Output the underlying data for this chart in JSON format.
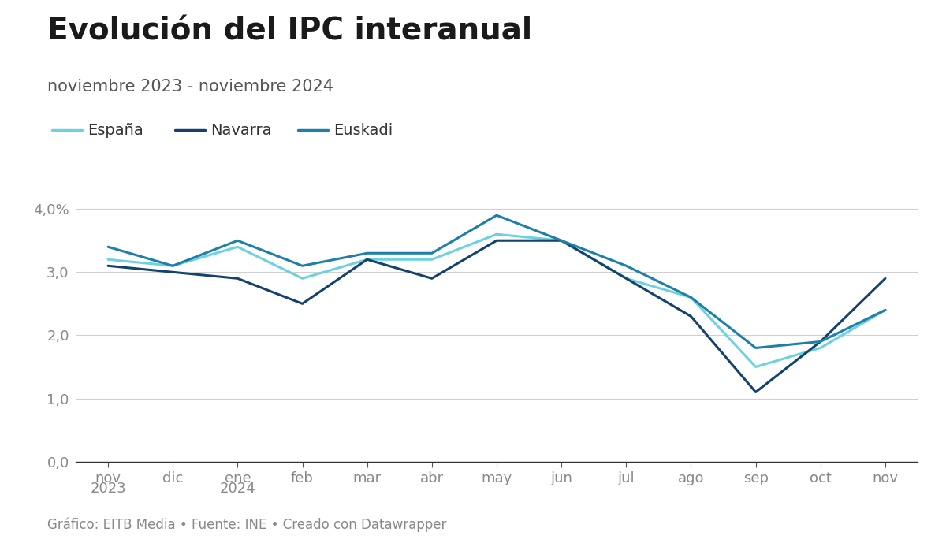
{
  "title": "Evolución del IPC interanual",
  "subtitle": "noviembre 2023 - noviembre 2024",
  "footer": "Gráfico: EITB Media • Fuente: INE • Creado con Datawrapper",
  "x_labels_short": [
    "nov",
    "dic",
    "ene",
    "feb",
    "mar",
    "abr",
    "may",
    "jun",
    "jul",
    "ago",
    "sep",
    "oct",
    "nov"
  ],
  "year_labels": {
    "0": "2023",
    "2": "2024"
  },
  "series": [
    {
      "name": "España",
      "color": "#6dd1df",
      "values": [
        3.2,
        3.1,
        3.4,
        2.9,
        3.2,
        3.2,
        3.6,
        3.5,
        2.9,
        2.6,
        1.5,
        1.8,
        2.4
      ]
    },
    {
      "name": "Navarra",
      "color": "#14426e",
      "values": [
        3.1,
        3.0,
        2.9,
        2.5,
        3.2,
        2.9,
        3.5,
        3.5,
        2.9,
        2.3,
        1.1,
        1.9,
        2.9
      ]
    },
    {
      "name": "Euskadi",
      "color": "#1e7fa8",
      "values": [
        3.4,
        3.1,
        3.5,
        3.1,
        3.3,
        3.3,
        3.9,
        3.5,
        3.1,
        2.6,
        1.8,
        1.9,
        2.4
      ]
    }
  ],
  "ylim": [
    0,
    4.3
  ],
  "yticks": [
    0.0,
    1.0,
    2.0,
    3.0,
    4.0
  ],
  "background_color": "#ffffff",
  "title_fontsize": 28,
  "subtitle_fontsize": 15,
  "axis_fontsize": 13,
  "legend_fontsize": 14,
  "footer_fontsize": 12,
  "line_width": 2.2
}
